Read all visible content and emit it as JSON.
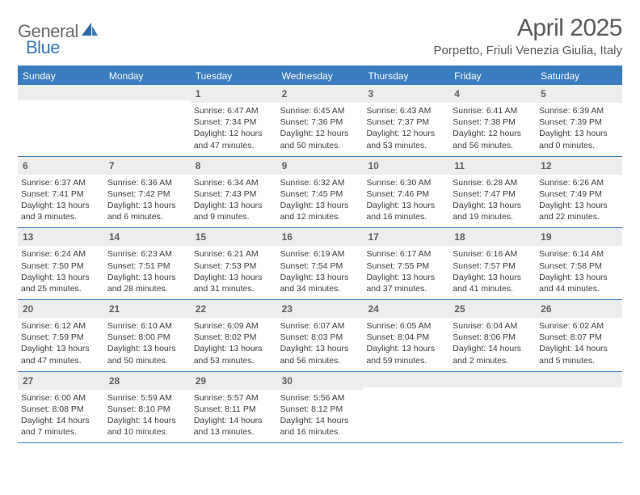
{
  "brand": {
    "part1": "General",
    "part2": "Blue"
  },
  "title": "April 2025",
  "location": "Porpetto, Friuli Venezia Giulia, Italy",
  "colors": {
    "accent": "#3b7bbf",
    "header_text": "#ffffff",
    "daynum_bg": "#ededed",
    "body_text": "#404040",
    "title_text": "#5a5a5a"
  },
  "day_names": [
    "Sunday",
    "Monday",
    "Tuesday",
    "Wednesday",
    "Thursday",
    "Friday",
    "Saturday"
  ],
  "weeks": [
    [
      {
        "empty": true
      },
      {
        "empty": true
      },
      {
        "num": "1",
        "sunrise": "6:47 AM",
        "sunset": "7:34 PM",
        "daylight": "12 hours and 47 minutes."
      },
      {
        "num": "2",
        "sunrise": "6:45 AM",
        "sunset": "7:36 PM",
        "daylight": "12 hours and 50 minutes."
      },
      {
        "num": "3",
        "sunrise": "6:43 AM",
        "sunset": "7:37 PM",
        "daylight": "12 hours and 53 minutes."
      },
      {
        "num": "4",
        "sunrise": "6:41 AM",
        "sunset": "7:38 PM",
        "daylight": "12 hours and 56 minutes."
      },
      {
        "num": "5",
        "sunrise": "6:39 AM",
        "sunset": "7:39 PM",
        "daylight": "13 hours and 0 minutes."
      }
    ],
    [
      {
        "num": "6",
        "sunrise": "6:37 AM",
        "sunset": "7:41 PM",
        "daylight": "13 hours and 3 minutes."
      },
      {
        "num": "7",
        "sunrise": "6:36 AM",
        "sunset": "7:42 PM",
        "daylight": "13 hours and 6 minutes."
      },
      {
        "num": "8",
        "sunrise": "6:34 AM",
        "sunset": "7:43 PM",
        "daylight": "13 hours and 9 minutes."
      },
      {
        "num": "9",
        "sunrise": "6:32 AM",
        "sunset": "7:45 PM",
        "daylight": "13 hours and 12 minutes."
      },
      {
        "num": "10",
        "sunrise": "6:30 AM",
        "sunset": "7:46 PM",
        "daylight": "13 hours and 16 minutes."
      },
      {
        "num": "11",
        "sunrise": "6:28 AM",
        "sunset": "7:47 PM",
        "daylight": "13 hours and 19 minutes."
      },
      {
        "num": "12",
        "sunrise": "6:26 AM",
        "sunset": "7:49 PM",
        "daylight": "13 hours and 22 minutes."
      }
    ],
    [
      {
        "num": "13",
        "sunrise": "6:24 AM",
        "sunset": "7:50 PM",
        "daylight": "13 hours and 25 minutes."
      },
      {
        "num": "14",
        "sunrise": "6:23 AM",
        "sunset": "7:51 PM",
        "daylight": "13 hours and 28 minutes."
      },
      {
        "num": "15",
        "sunrise": "6:21 AM",
        "sunset": "7:53 PM",
        "daylight": "13 hours and 31 minutes."
      },
      {
        "num": "16",
        "sunrise": "6:19 AM",
        "sunset": "7:54 PM",
        "daylight": "13 hours and 34 minutes."
      },
      {
        "num": "17",
        "sunrise": "6:17 AM",
        "sunset": "7:55 PM",
        "daylight": "13 hours and 37 minutes."
      },
      {
        "num": "18",
        "sunrise": "6:16 AM",
        "sunset": "7:57 PM",
        "daylight": "13 hours and 41 minutes."
      },
      {
        "num": "19",
        "sunrise": "6:14 AM",
        "sunset": "7:58 PM",
        "daylight": "13 hours and 44 minutes."
      }
    ],
    [
      {
        "num": "20",
        "sunrise": "6:12 AM",
        "sunset": "7:59 PM",
        "daylight": "13 hours and 47 minutes."
      },
      {
        "num": "21",
        "sunrise": "6:10 AM",
        "sunset": "8:00 PM",
        "daylight": "13 hours and 50 minutes."
      },
      {
        "num": "22",
        "sunrise": "6:09 AM",
        "sunset": "8:02 PM",
        "daylight": "13 hours and 53 minutes."
      },
      {
        "num": "23",
        "sunrise": "6:07 AM",
        "sunset": "8:03 PM",
        "daylight": "13 hours and 56 minutes."
      },
      {
        "num": "24",
        "sunrise": "6:05 AM",
        "sunset": "8:04 PM",
        "daylight": "13 hours and 59 minutes."
      },
      {
        "num": "25",
        "sunrise": "6:04 AM",
        "sunset": "8:06 PM",
        "daylight": "14 hours and 2 minutes."
      },
      {
        "num": "26",
        "sunrise": "6:02 AM",
        "sunset": "8:07 PM",
        "daylight": "14 hours and 5 minutes."
      }
    ],
    [
      {
        "num": "27",
        "sunrise": "6:00 AM",
        "sunset": "8:08 PM",
        "daylight": "14 hours and 7 minutes."
      },
      {
        "num": "28",
        "sunrise": "5:59 AM",
        "sunset": "8:10 PM",
        "daylight": "14 hours and 10 minutes."
      },
      {
        "num": "29",
        "sunrise": "5:57 AM",
        "sunset": "8:11 PM",
        "daylight": "14 hours and 13 minutes."
      },
      {
        "num": "30",
        "sunrise": "5:56 AM",
        "sunset": "8:12 PM",
        "daylight": "14 hours and 16 minutes."
      },
      {
        "empty": true
      },
      {
        "empty": true
      },
      {
        "empty": true
      }
    ]
  ],
  "labels": {
    "sunrise": "Sunrise:",
    "sunset": "Sunset:",
    "daylight": "Daylight:"
  }
}
